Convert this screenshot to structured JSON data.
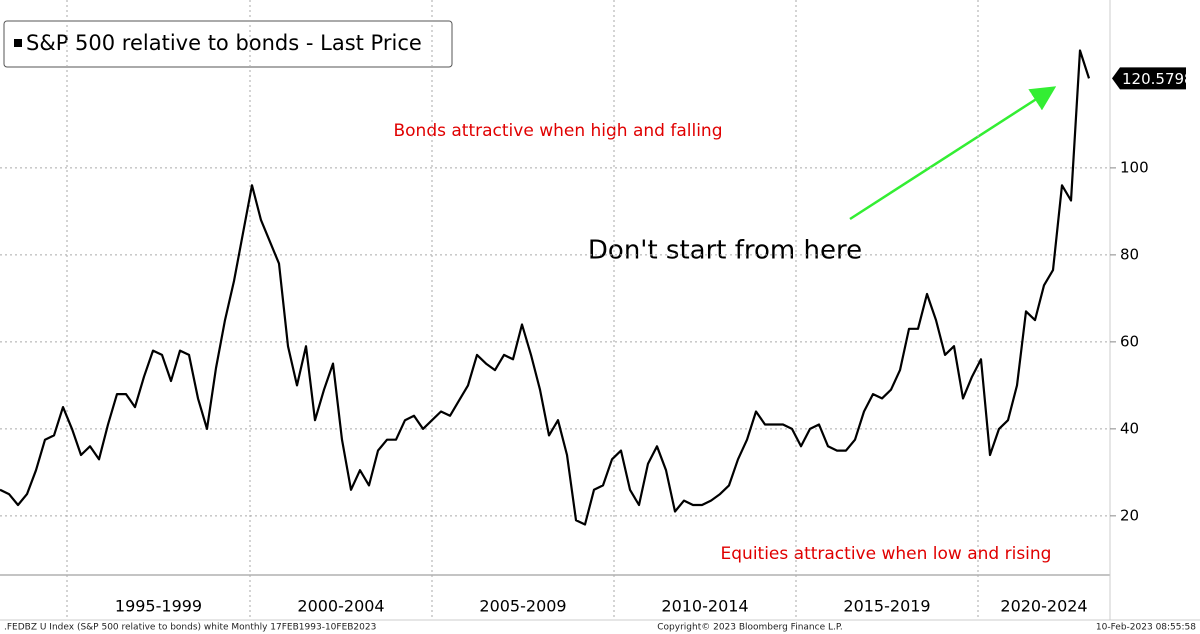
{
  "chart_data": {
    "type": "line",
    "legend": "S&P 500 relative to bonds - Last Price",
    "annotations": [
      "Bonds attractive when high and falling",
      "Don't start from here",
      "Equities attractive when low and rising"
    ],
    "periods": [
      "1995-1999",
      "2000-2004",
      "2005-2009",
      "2010-2014",
      "2015-2019",
      "2020-2024"
    ],
    "footer": [
      ".FEDBZ U Index (S&P 500 relative to bonds) white  Monthly 17FEB1993-10FEB2023",
      "Copyright© 2023 Bloomberg Finance L.P.",
      "10-Feb-2023 08:55:58"
    ],
    "series": [
      {
        "name": "S&P 500 relative to bonds",
        "color": "#000000",
        "values": [
          26,
          25,
          22.5,
          25,
          30.5,
          37.5,
          38.5,
          45,
          40,
          34,
          36,
          33,
          41,
          48,
          48,
          45,
          52,
          58,
          57,
          51,
          58,
          57,
          47,
          40,
          54,
          65,
          74,
          85,
          96,
          88,
          83,
          78,
          59,
          50,
          59,
          42,
          49,
          55,
          37.5,
          26,
          30.5,
          27,
          35,
          37.5,
          37.5,
          42,
          43,
          40,
          42,
          44,
          43,
          46.5,
          50,
          57,
          55,
          53.5,
          57,
          56,
          64,
          57,
          49,
          38.5,
          42,
          34,
          19,
          18,
          26,
          27,
          33,
          35,
          26,
          22.5,
          32,
          36,
          30.5,
          21,
          23.5,
          22.5,
          22.5,
          23.5,
          25,
          27,
          33,
          37.5,
          44,
          41,
          41,
          41,
          40,
          36,
          40,
          41,
          36,
          35,
          35,
          37.5,
          44,
          48,
          47,
          49,
          53.5,
          63,
          63,
          71,
          65,
          57,
          59,
          47,
          52,
          56,
          34,
          40,
          42,
          50,
          67,
          65,
          73,
          76.5,
          96,
          92.5,
          127,
          120.5798
        ]
      }
    ],
    "ylim": [
      6.4,
      138.6
    ],
    "yticks": [
      20,
      40,
      60,
      80,
      100
    ],
    "grid": true
  }
}
